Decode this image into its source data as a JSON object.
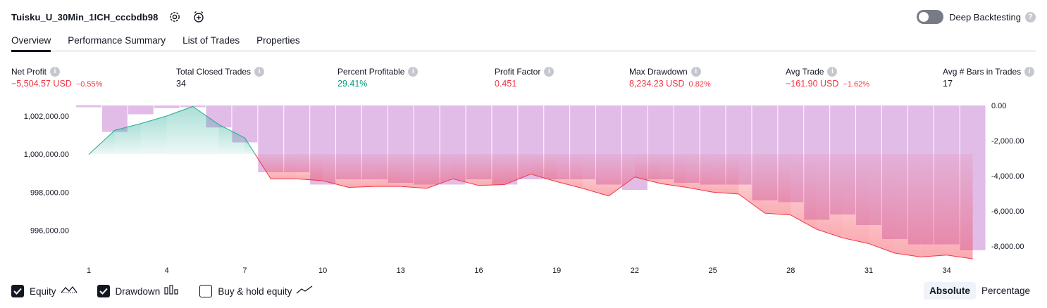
{
  "header": {
    "title": "Tuisku_U_30Min_1ICH_cccbdb98",
    "settings_icon": "gear-icon",
    "alert_icon": "alarm-clock-plus-icon"
  },
  "deep_backtesting": {
    "label": "Deep Backtesting",
    "enabled": false,
    "help": "?"
  },
  "tabs": [
    {
      "label": "Overview",
      "active": true
    },
    {
      "label": "Performance Summary",
      "active": false
    },
    {
      "label": "List of Trades",
      "active": false
    },
    {
      "label": "Properties",
      "active": false
    }
  ],
  "metrics": {
    "net_profit": {
      "label": "Net Profit",
      "value": "−5,504.57 USD",
      "pct": "−0.55%"
    },
    "total_closed_trades": {
      "label": "Total Closed Trades",
      "value": "34"
    },
    "percent_profitable": {
      "label": "Percent Profitable",
      "value": "29.41%"
    },
    "profit_factor": {
      "label": "Profit Factor",
      "value": "0.451"
    },
    "max_drawdown": {
      "label": "Max Drawdown",
      "value": "8,234.23 USD",
      "pct": "0.82%"
    },
    "avg_trade": {
      "label": "Avg Trade",
      "value": "−161.90 USD",
      "pct": "−1.62%"
    },
    "avg_bars": {
      "label": "Avg # Bars in Trades",
      "value": "17"
    },
    "info_glyph": "i"
  },
  "chart_data": {
    "type": "area",
    "x_ticks": [
      "1",
      "4",
      "7",
      "10",
      "13",
      "16",
      "19",
      "22",
      "25",
      "28",
      "31",
      "34"
    ],
    "y_left_ticks": [
      "1,002,000.00",
      "1,000,000.00",
      "998,000.00",
      "996,000.00"
    ],
    "y_right_ticks": [
      "0.00",
      "-2,000.00",
      "-4,000.00",
      "-6,000.00",
      "-8,000.00"
    ],
    "ylim_left": [
      994800,
      1002550
    ],
    "ylim_right": [
      -8400,
      0
    ],
    "equity_baseline": 1000000,
    "series": [
      {
        "name": "Equity",
        "type": "line",
        "color_up": "#22ab94",
        "color_down": "#f23645",
        "x": [
          1,
          2,
          3,
          4,
          5,
          6,
          7,
          8,
          9,
          10,
          11,
          12,
          13,
          14,
          15,
          16,
          17,
          18,
          19,
          20,
          21,
          22,
          23,
          24,
          25,
          26,
          27,
          28,
          29,
          30,
          31,
          32,
          33,
          34,
          35
        ],
        "values": [
          999980,
          1001250,
          1001600,
          1002000,
          1002500,
          1001550,
          1000850,
          998700,
          998700,
          998600,
          998250,
          998300,
          998300,
          998200,
          998700,
          998350,
          998400,
          998950,
          998550,
          998200,
          997800,
          998800,
          998450,
          998250,
          998000,
          997900,
          996900,
          996800,
          996050,
          995600,
          995300,
          994800,
          994600,
          994700,
          994500
        ]
      },
      {
        "name": "Drawdown",
        "type": "bar",
        "color": "#ce93d8",
        "values": [
          -100,
          -1500,
          -500,
          -150,
          -100,
          -1250,
          -2100,
          -3800,
          -3800,
          -4500,
          -4200,
          -4200,
          -4400,
          -4500,
          -4500,
          -4200,
          -4500,
          -4200,
          -4200,
          -4200,
          -4500,
          -4800,
          -4200,
          -4400,
          -4500,
          -4500,
          -5400,
          -5500,
          -6500,
          -6200,
          -6800,
          -7600,
          -7900,
          -7900,
          -8234
        ]
      }
    ]
  },
  "legend": [
    {
      "label": "Equity",
      "checked": true,
      "icon": "equity-line-icon"
    },
    {
      "label": "Drawdown",
      "checked": true,
      "icon": "drawdown-bars-icon"
    },
    {
      "label": "Buy & hold equity",
      "checked": false,
      "icon": "buy-hold-line-icon"
    }
  ],
  "mode": {
    "absolute": "Absolute",
    "percentage": "Percentage",
    "selected": "Absolute"
  }
}
